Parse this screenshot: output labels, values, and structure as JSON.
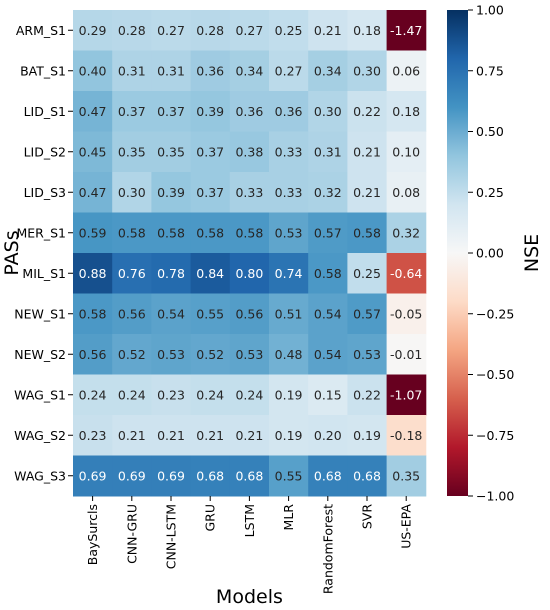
{
  "chart_data": {
    "type": "heatmap",
    "title": "",
    "xlabel": "Models",
    "ylabel": "PASs",
    "colorbar_label": "NSE",
    "colormap": "RdBu",
    "vmin": -1.0,
    "vmax": 1.0,
    "colorbar_ticks": [
      "1.00",
      "0.75",
      "0.50",
      "0.25",
      "0.00",
      "−0.25",
      "−0.50",
      "−0.75",
      "−1.00"
    ],
    "colorbar_tick_values": [
      1.0,
      0.75,
      0.5,
      0.25,
      0.0,
      -0.25,
      -0.5,
      -0.75,
      -1.0
    ],
    "x": [
      "BaySurcls",
      "CNN-GRU",
      "CNN-LSTM",
      "GRU",
      "LSTM",
      "MLR",
      "RandomForest",
      "SVR",
      "US-EPA"
    ],
    "x_label_colors": [
      "#d9543b",
      "#000000",
      "#000000",
      "#000000",
      "#000000",
      "#000000",
      "#000000",
      "#000000",
      "#e8973a"
    ],
    "y": [
      "ARM_S1",
      "BAT_S1",
      "LID_S1",
      "LID_S2",
      "LID_S3",
      "MER_S1",
      "MIL_S1",
      "NEW_S1",
      "NEW_S2",
      "WAG_S1",
      "WAG_S2",
      "WAG_S3"
    ],
    "values": [
      [
        0.29,
        0.28,
        0.27,
        0.28,
        0.27,
        0.25,
        0.21,
        0.18,
        -1.47
      ],
      [
        0.4,
        0.31,
        0.31,
        0.36,
        0.34,
        0.27,
        0.34,
        0.3,
        0.06
      ],
      [
        0.47,
        0.37,
        0.37,
        0.39,
        0.36,
        0.36,
        0.3,
        0.22,
        0.18
      ],
      [
        0.45,
        0.35,
        0.35,
        0.37,
        0.38,
        0.33,
        0.31,
        0.21,
        0.1
      ],
      [
        0.47,
        0.3,
        0.39,
        0.37,
        0.33,
        0.33,
        0.32,
        0.21,
        0.08
      ],
      [
        0.59,
        0.58,
        0.58,
        0.58,
        0.58,
        0.53,
        0.57,
        0.58,
        0.32
      ],
      [
        0.88,
        0.76,
        0.78,
        0.84,
        0.8,
        0.74,
        0.58,
        0.25,
        -0.64
      ],
      [
        0.58,
        0.56,
        0.54,
        0.55,
        0.56,
        0.51,
        0.54,
        0.57,
        -0.05
      ],
      [
        0.56,
        0.52,
        0.53,
        0.52,
        0.53,
        0.48,
        0.54,
        0.53,
        -0.01
      ],
      [
        0.24,
        0.24,
        0.23,
        0.24,
        0.24,
        0.19,
        0.15,
        0.22,
        -1.07
      ],
      [
        0.23,
        0.21,
        0.21,
        0.21,
        0.21,
        0.19,
        0.2,
        0.19,
        -0.18
      ],
      [
        0.69,
        0.69,
        0.69,
        0.68,
        0.68,
        0.55,
        0.68,
        0.68,
        0.35
      ]
    ],
    "value_format": "2 decimals",
    "grid": false,
    "legend": "colorbar-right"
  }
}
